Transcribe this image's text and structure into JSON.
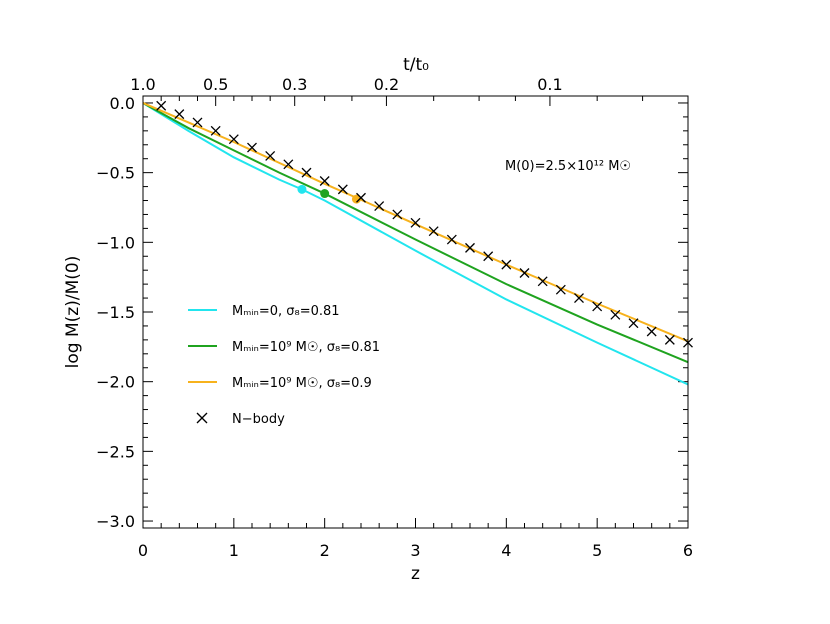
{
  "chart_data": {
    "type": "line",
    "xlabel": "z",
    "ylabel": "log M(z)/M(0)",
    "top_axis_label": "t/t₀",
    "xlim": [
      0,
      6
    ],
    "ylim": [
      -3.05,
      0.05
    ],
    "x_ticks": [
      "0",
      "1",
      "2",
      "3",
      "4",
      "5",
      "6"
    ],
    "y_ticks": [
      "0.0",
      "−0.5",
      "−1.0",
      "−1.5",
      "−2.0",
      "−2.5",
      "−3.0"
    ],
    "top_ticks": [
      {
        "label": "1.0",
        "z": 0
      },
      {
        "label": "0.5",
        "z": 0.8
      },
      {
        "label": "0.3",
        "z": 1.67
      },
      {
        "label": "0.2",
        "z": 2.68
      },
      {
        "label": "0.1",
        "z": 4.48
      }
    ],
    "annotation": "M(0)=2.5×10¹² M☉",
    "legend": [
      {
        "label": "Mₘᵢₙ=0, σ₈=0.81",
        "marker": "line",
        "color": "#22e5ee"
      },
      {
        "label": "Mₘᵢₙ=10⁹ M☉, σ₈=0.81",
        "marker": "line",
        "color": "#1fa31f"
      },
      {
        "label": "Mₘᵢₙ=10⁹ M☉, σ₈=0.9",
        "marker": "line",
        "color": "#f7b21c"
      },
      {
        "label": "N−body",
        "marker": "x",
        "color": "#000000"
      }
    ],
    "series": [
      {
        "color": "#22e5ee",
        "style": "line",
        "x": [
          0,
          0.5,
          1,
          1.5,
          1.75,
          2,
          3,
          4,
          5,
          6
        ],
        "y": [
          0,
          -0.2,
          -0.39,
          -0.55,
          -0.62,
          -0.7,
          -1.06,
          -1.41,
          -1.72,
          -2.02
        ],
        "marker": {
          "x": 1.75,
          "y": -0.62
        }
      },
      {
        "color": "#1fa31f",
        "style": "line",
        "x": [
          0,
          0.5,
          1,
          1.5,
          2,
          3,
          4,
          5,
          6
        ],
        "y": [
          0,
          -0.18,
          -0.34,
          -0.5,
          -0.65,
          -0.98,
          -1.3,
          -1.59,
          -1.86
        ],
        "marker": {
          "x": 2.0,
          "y": -0.65
        }
      },
      {
        "color": "#f7b21c",
        "style": "line",
        "x": [
          0,
          0.5,
          1,
          1.5,
          2,
          2.35,
          3,
          4,
          5,
          6
        ],
        "y": [
          0,
          -0.14,
          -0.28,
          -0.43,
          -0.58,
          -0.68,
          -0.87,
          -1.16,
          -1.44,
          -1.71
        ],
        "marker": {
          "x": 2.35,
          "y": -0.69
        }
      },
      {
        "color": "#000000",
        "style": "x",
        "x": [
          0.2,
          0.4,
          0.6,
          0.8,
          1.0,
          1.2,
          1.4,
          1.6,
          1.8,
          2.0,
          2.2,
          2.4,
          2.6,
          2.8,
          3.0,
          3.2,
          3.4,
          3.6,
          3.8,
          4.0,
          4.2,
          4.4,
          4.6,
          4.8,
          5.0,
          5.2,
          5.4,
          5.6,
          5.8,
          6.0
        ],
        "y": [
          -0.02,
          -0.08,
          -0.14,
          -0.2,
          -0.26,
          -0.32,
          -0.38,
          -0.44,
          -0.5,
          -0.56,
          -0.62,
          -0.68,
          -0.74,
          -0.8,
          -0.86,
          -0.92,
          -0.98,
          -1.04,
          -1.1,
          -1.16,
          -1.22,
          -1.28,
          -1.34,
          -1.4,
          -1.46,
          -1.52,
          -1.58,
          -1.64,
          -1.7,
          -1.72
        ]
      }
    ]
  }
}
